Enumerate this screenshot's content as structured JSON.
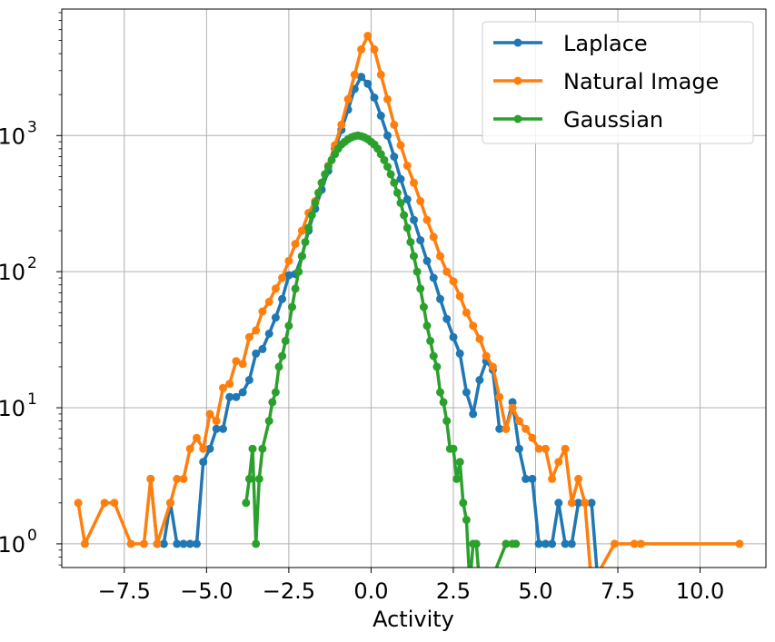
{
  "chart_data": {
    "type": "line",
    "title": "",
    "xlabel": "Activity",
    "ylabel": "",
    "yscale": "log",
    "xlim": [
      -9.4,
      12.0
    ],
    "ylim": [
      0.67,
      8500
    ],
    "grid": true,
    "legend_position": "top-right",
    "x_ticks": [
      -7.5,
      -5.0,
      -2.5,
      0.0,
      2.5,
      5.0,
      7.5,
      10.0
    ],
    "x_tick_labels": [
      "−7.5",
      "−5.0",
      "−2.5",
      "0.0",
      "2.5",
      "5.0",
      "7.5",
      "10.0"
    ],
    "y_ticks": [
      1,
      10,
      100,
      1000
    ],
    "y_tick_labels": [
      {
        "base": "10",
        "exp": "0"
      },
      {
        "base": "10",
        "exp": "1"
      },
      {
        "base": "10",
        "exp": "2"
      },
      {
        "base": "10",
        "exp": "3"
      }
    ],
    "series": [
      {
        "name": "Laplace",
        "color": "#1f77b4",
        "x": [
          -6.7,
          -6.5,
          -6.3,
          -6.1,
          -5.9,
          -5.7,
          -5.5,
          -5.3,
          -5.1,
          -4.9,
          -4.7,
          -4.5,
          -4.3,
          -4.1,
          -3.9,
          -3.7,
          -3.5,
          -3.3,
          -3.1,
          -2.9,
          -2.7,
          -2.5,
          -2.3,
          -2.1,
          -1.9,
          -1.7,
          -1.5,
          -1.3,
          -1.1,
          -0.9,
          -0.7,
          -0.5,
          -0.3,
          -0.1,
          0.1,
          0.3,
          0.5,
          0.7,
          0.9,
          1.1,
          1.3,
          1.5,
          1.7,
          1.9,
          2.1,
          2.3,
          2.5,
          2.7,
          2.9,
          3.1,
          3.3,
          3.5,
          3.7,
          3.9,
          4.1,
          4.3,
          4.5,
          4.7,
          4.9,
          5.1,
          5.3,
          5.5,
          5.7,
          5.9,
          6.1,
          6.3,
          6.5,
          6.7,
          6.9
        ],
        "y": [
          3,
          1,
          1,
          2,
          1,
          1,
          1,
          1,
          4,
          5,
          7,
          7,
          12,
          12,
          13,
          16,
          25,
          27,
          35,
          46,
          63,
          94,
          96,
          130,
          200,
          290,
          400,
          550,
          800,
          1100,
          1550,
          2200,
          2700,
          2400,
          1900,
          1400,
          1000,
          700,
          480,
          340,
          240,
          170,
          120,
          90,
          63,
          45,
          33,
          25,
          13,
          9,
          16,
          22,
          19,
          7,
          7,
          11,
          5,
          3,
          3,
          1,
          1,
          1,
          2,
          1,
          1,
          2,
          2,
          2,
          0.5
        ]
      },
      {
        "name": "Natural Image",
        "color": "#ff7f0e",
        "x": [
          -8.9,
          -8.7,
          -8.1,
          -7.8,
          -7.3,
          -6.9,
          -6.7,
          -6.5,
          -6.1,
          -5.9,
          -5.7,
          -5.5,
          -5.3,
          -5.1,
          -4.9,
          -4.7,
          -4.5,
          -4.3,
          -4.1,
          -3.9,
          -3.7,
          -3.5,
          -3.3,
          -3.1,
          -2.9,
          -2.7,
          -2.5,
          -2.3,
          -2.1,
          -1.9,
          -1.7,
          -1.5,
          -1.3,
          -1.1,
          -0.9,
          -0.7,
          -0.5,
          -0.3,
          -0.1,
          0.1,
          0.3,
          0.5,
          0.7,
          0.9,
          1.1,
          1.3,
          1.5,
          1.7,
          1.9,
          2.1,
          2.3,
          2.5,
          2.7,
          2.9,
          3.1,
          3.3,
          3.5,
          3.7,
          3.9,
          4.1,
          4.3,
          4.5,
          4.7,
          4.9,
          5.1,
          5.3,
          5.5,
          5.7,
          5.9,
          6.1,
          6.3,
          6.5,
          6.7,
          7.4,
          8.0,
          8.2,
          11.2
        ],
        "y": [
          2,
          1,
          2,
          2,
          1,
          1,
          3,
          1,
          2,
          3,
          3,
          5,
          6,
          5,
          9,
          8,
          14,
          15,
          22,
          21,
          33,
          37,
          51,
          60,
          75,
          90,
          120,
          160,
          200,
          270,
          330,
          450,
          600,
          850,
          1200,
          1850,
          2800,
          4300,
          5400,
          4300,
          2800,
          1850,
          1200,
          850,
          600,
          450,
          330,
          240,
          180,
          130,
          100,
          85,
          66,
          50,
          40,
          32,
          24,
          20,
          12,
          7,
          10,
          8,
          7,
          6,
          5,
          5,
          3,
          4,
          5,
          2,
          3,
          2,
          0.5,
          1,
          1,
          1,
          1
        ]
      },
      {
        "name": "Gaussian",
        "color": "#2ca02c",
        "x": [
          -3.8,
          -3.7,
          -3.6,
          -3.5,
          -3.4,
          -3.3,
          -3.1,
          -3.0,
          -2.9,
          -2.8,
          -2.7,
          -2.6,
          -2.5,
          -2.4,
          -2.3,
          -2.2,
          -2.1,
          -2.0,
          -1.9,
          -1.8,
          -1.7,
          -1.6,
          -1.5,
          -1.4,
          -1.3,
          -1.2,
          -1.1,
          -1.0,
          -0.9,
          -0.8,
          -0.7,
          -0.6,
          -0.5,
          -0.4,
          -0.3,
          -0.2,
          -0.1,
          0.0,
          0.1,
          0.2,
          0.3,
          0.4,
          0.5,
          0.6,
          0.7,
          0.8,
          0.9,
          1.0,
          1.1,
          1.2,
          1.3,
          1.4,
          1.5,
          1.6,
          1.7,
          1.8,
          1.9,
          2.0,
          2.1,
          2.2,
          2.3,
          2.4,
          2.5,
          2.6,
          2.7,
          2.8,
          2.9,
          3.0,
          3.1,
          3.2,
          3.3,
          3.4,
          3.5,
          3.6,
          4.1,
          4.3,
          4.4
        ],
        "y": [
          2,
          3,
          5,
          1,
          3,
          5,
          8,
          11,
          13,
          20,
          24,
          31,
          40,
          55,
          75,
          100,
          130,
          165,
          210,
          260,
          320,
          380,
          450,
          520,
          590,
          660,
          730,
          800,
          860,
          900,
          940,
          970,
          990,
          1000,
          990,
          970,
          940,
          900,
          860,
          800,
          730,
          660,
          590,
          520,
          450,
          380,
          320,
          260,
          210,
          165,
          130,
          100,
          75,
          55,
          40,
          31,
          24,
          20,
          13,
          11,
          8,
          5,
          5,
          3,
          4,
          2,
          1.5,
          0.5,
          1,
          1,
          0.5,
          0.5,
          0.5,
          0.5,
          1,
          1,
          1
        ]
      }
    ]
  }
}
